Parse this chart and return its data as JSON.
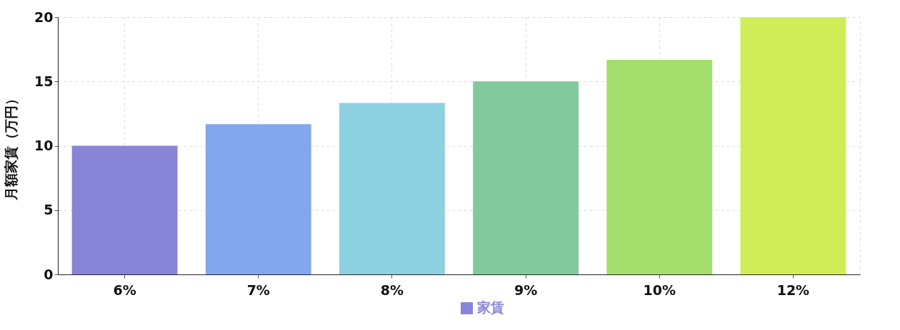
{
  "chart_data": {
    "type": "bar",
    "ylabel": "月額家賃（万円）",
    "categories": [
      "6%",
      "7%",
      "8%",
      "9%",
      "10%",
      "12%"
    ],
    "series": [
      {
        "name": "家賃",
        "values": [
          10,
          11.67,
          13.33,
          15,
          16.67,
          20
        ]
      }
    ],
    "colors": [
      "#8884d8",
      "#83a6ed",
      "#8dd1e1",
      "#82ca9d",
      "#a4de6c",
      "#d0ed57"
    ],
    "ylim": [
      0,
      20
    ],
    "yticks": [
      0,
      5,
      10,
      15,
      20
    ],
    "grid": true,
    "legend": "bottom"
  }
}
